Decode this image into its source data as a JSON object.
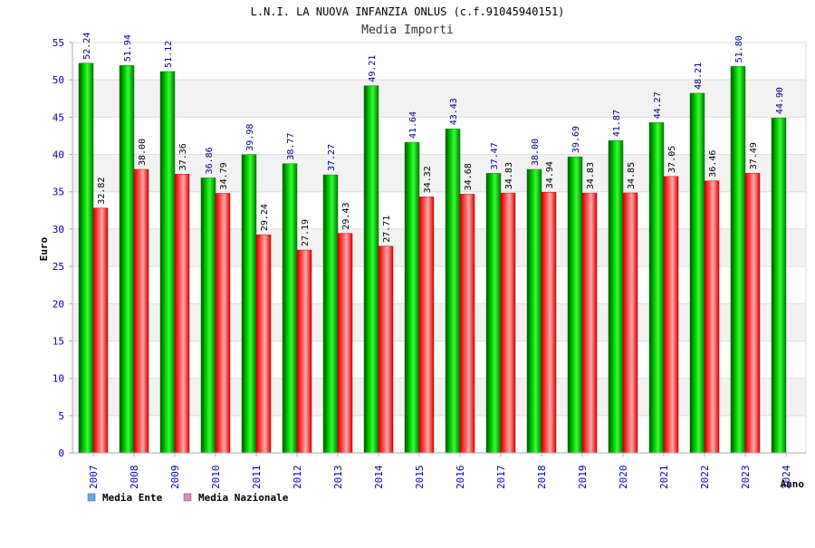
{
  "chart_data": {
    "type": "bar",
    "title": "L.N.I. LA NUOVA INFANZIA ONLUS (c.f.91045940151)",
    "subtitle": "Media Importi",
    "xlabel": "Anno",
    "ylabel": "Euro",
    "ylim": [
      0,
      55
    ],
    "yticks": [
      0,
      5,
      10,
      15,
      20,
      25,
      30,
      35,
      40,
      45,
      50,
      55
    ],
    "categories": [
      "2007",
      "2008",
      "2009",
      "2010",
      "2011",
      "2012",
      "2013",
      "2014",
      "2015",
      "2016",
      "2017",
      "2018",
      "2019",
      "2020",
      "2021",
      "2022",
      "2023",
      "2024"
    ],
    "series": [
      {
        "name": "Media Ente",
        "color": "#00bb00",
        "legend_color": "#66aaee",
        "values": [
          52.24,
          51.94,
          51.12,
          36.86,
          39.98,
          38.77,
          37.27,
          49.21,
          41.64,
          43.43,
          37.47,
          38.0,
          39.69,
          41.87,
          44.27,
          48.21,
          51.8,
          44.9
        ],
        "labels": [
          "52.24",
          "51.94",
          "51.12",
          "36.86",
          "39.98",
          "38.77",
          "37.27",
          "49.21",
          "41.64",
          "43.43",
          "37.47",
          "38.00",
          "39.69",
          "41.87",
          "44.27",
          "48.21",
          "51.80",
          "44.90"
        ]
      },
      {
        "name": "Media Nazionale",
        "color": "#ee1111",
        "legend_color": "#dd88bb",
        "values": [
          32.82,
          38.0,
          37.36,
          34.79,
          29.24,
          27.19,
          29.43,
          27.71,
          34.32,
          34.68,
          34.83,
          34.94,
          34.83,
          34.85,
          37.05,
          36.46,
          37.49,
          null
        ],
        "labels": [
          "32.82",
          "38.00",
          "37.36",
          "34.79",
          "29.24",
          "27.19",
          "29.43",
          "27.71",
          "34.32",
          "34.68",
          "34.83",
          "34.94",
          "34.83",
          "34.85",
          "37.05",
          "36.46",
          "37.49",
          null
        ]
      }
    ],
    "legend_position": "bottom-left",
    "grid": true
  }
}
